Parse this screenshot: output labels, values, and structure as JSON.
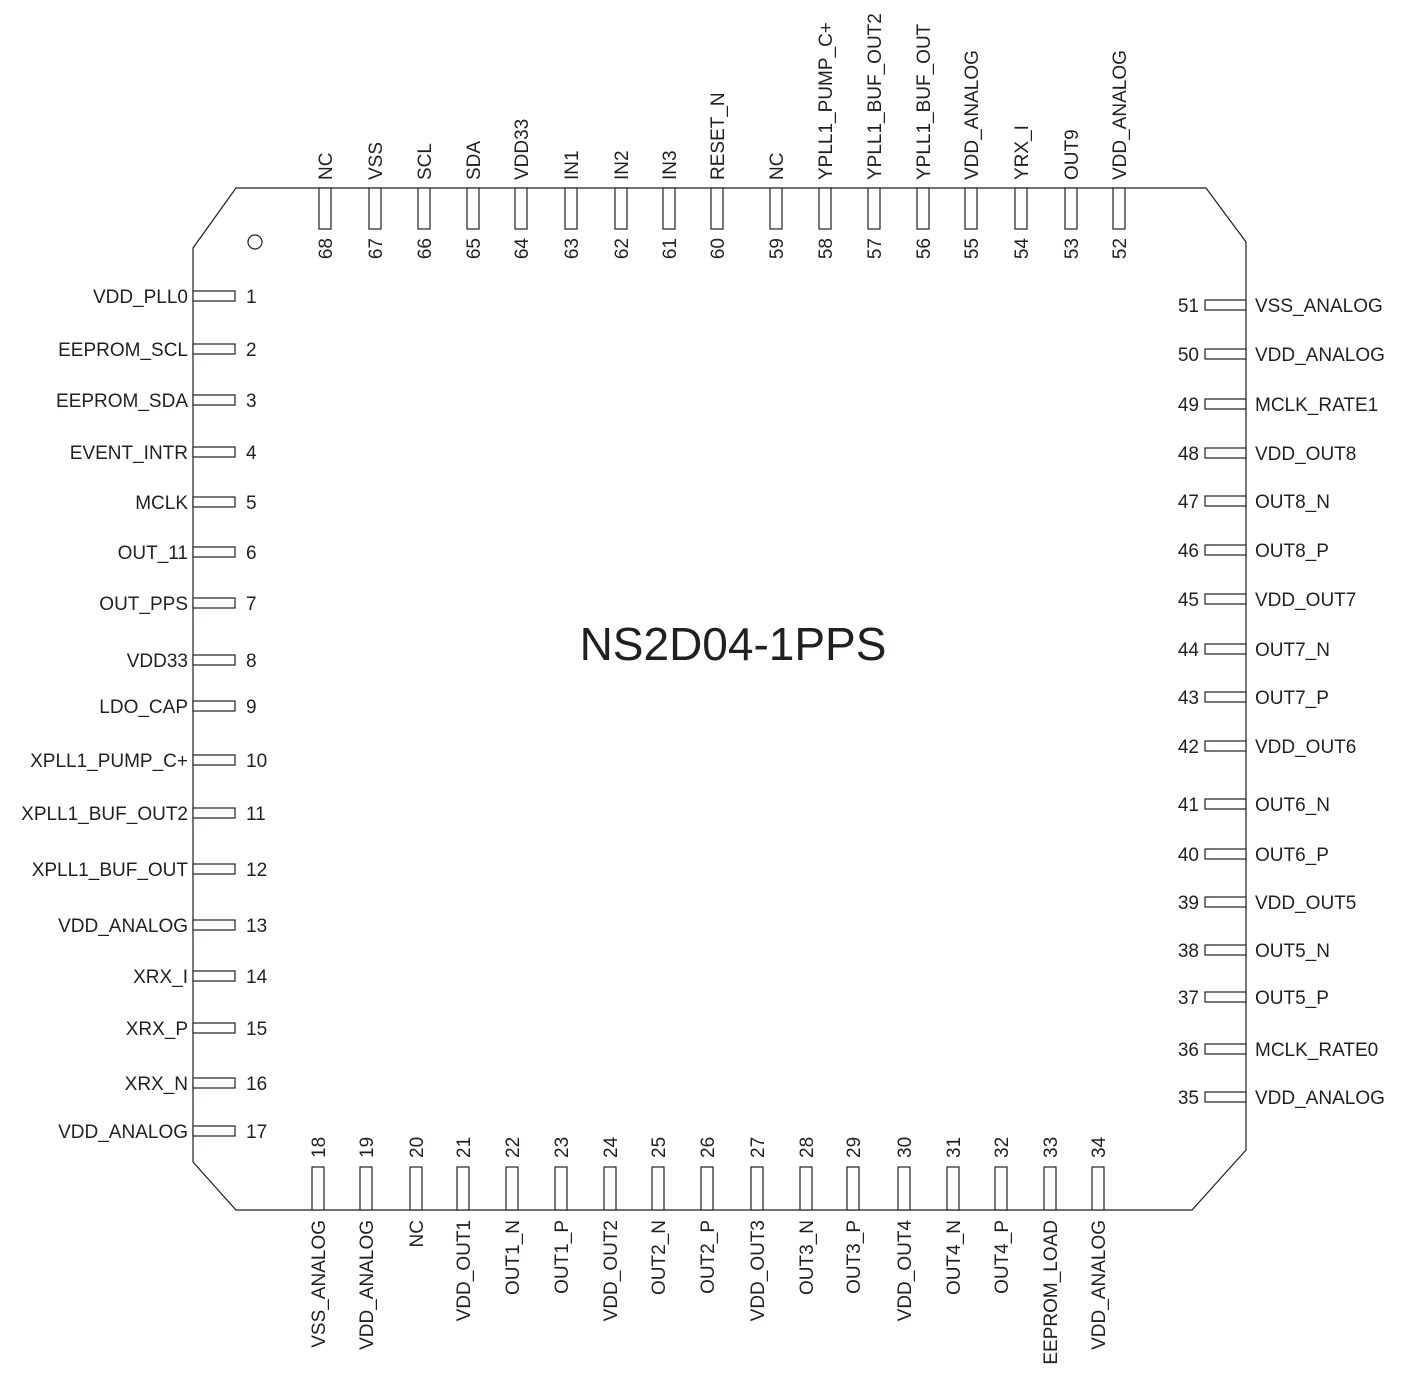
{
  "part_name": "NS2D04-1PPS",
  "pins": {
    "left": [
      {
        "num": "1",
        "name": "VDD_PLL0"
      },
      {
        "num": "2",
        "name": "EEPROM_SCL"
      },
      {
        "num": "3",
        "name": "EEPROM_SDA"
      },
      {
        "num": "4",
        "name": "EVENT_INTR"
      },
      {
        "num": "5",
        "name": "MCLK"
      },
      {
        "num": "6",
        "name": "OUT_11"
      },
      {
        "num": "7",
        "name": "OUT_PPS"
      },
      {
        "num": "8",
        "name": "VDD33"
      },
      {
        "num": "9",
        "name": "LDO_CAP"
      },
      {
        "num": "10",
        "name": "XPLL1_PUMP_C+"
      },
      {
        "num": "11",
        "name": "XPLL1_BUF_OUT2"
      },
      {
        "num": "12",
        "name": "XPLL1_BUF_OUT"
      },
      {
        "num": "13",
        "name": "VDD_ANALOG"
      },
      {
        "num": "14",
        "name": "XRX_I"
      },
      {
        "num": "15",
        "name": "XRX_P"
      },
      {
        "num": "16",
        "name": "XRX_N"
      },
      {
        "num": "17",
        "name": "VDD_ANALOG"
      }
    ],
    "bottom": [
      {
        "num": "18",
        "name": "VSS_ANALOG"
      },
      {
        "num": "19",
        "name": "VDD_ANALOG"
      },
      {
        "num": "20",
        "name": "NC"
      },
      {
        "num": "21",
        "name": "VDD_OUT1"
      },
      {
        "num": "22",
        "name": "OUT1_N"
      },
      {
        "num": "23",
        "name": "OUT1_P"
      },
      {
        "num": "24",
        "name": "VDD_OUT2"
      },
      {
        "num": "25",
        "name": "OUT2_N"
      },
      {
        "num": "26",
        "name": "OUT2_P"
      },
      {
        "num": "27",
        "name": "VDD_OUT3"
      },
      {
        "num": "28",
        "name": "OUT3_N"
      },
      {
        "num": "29",
        "name": "OUT3_P"
      },
      {
        "num": "30",
        "name": "VDD_OUT4"
      },
      {
        "num": "31",
        "name": "OUT4_N"
      },
      {
        "num": "32",
        "name": "OUT4_P"
      },
      {
        "num": "33",
        "name": "EEPROM_LOAD"
      },
      {
        "num": "34",
        "name": "VDD_ANALOG"
      }
    ],
    "right": [
      {
        "num": "35",
        "name": "VDD_ANALOG"
      },
      {
        "num": "36",
        "name": "MCLK_RATE0"
      },
      {
        "num": "37",
        "name": "OUT5_P"
      },
      {
        "num": "38",
        "name": "OUT5_N"
      },
      {
        "num": "39",
        "name": "VDD_OUT5"
      },
      {
        "num": "40",
        "name": "OUT6_P"
      },
      {
        "num": "41",
        "name": "OUT6_N"
      },
      {
        "num": "42",
        "name": "VDD_OUT6"
      },
      {
        "num": "43",
        "name": "OUT7_P"
      },
      {
        "num": "44",
        "name": "OUT7_N"
      },
      {
        "num": "45",
        "name": "VDD_OUT7"
      },
      {
        "num": "46",
        "name": "OUT8_P"
      },
      {
        "num": "47",
        "name": "OUT8_N"
      },
      {
        "num": "48",
        "name": "VDD_OUT8"
      },
      {
        "num": "49",
        "name": "MCLK_RATE1"
      },
      {
        "num": "50",
        "name": "VDD_ANALOG"
      },
      {
        "num": "51",
        "name": "VSS_ANALOG"
      }
    ],
    "top": [
      {
        "num": "52",
        "name": "VDD_ANALOG"
      },
      {
        "num": "53",
        "name": "OUT9"
      },
      {
        "num": "54",
        "name": "YRX_I"
      },
      {
        "num": "55",
        "name": "VDD_ANALOG"
      },
      {
        "num": "56",
        "name": "YPLL1_BUF_OUT"
      },
      {
        "num": "57",
        "name": "YPLL1_BUF_OUT2"
      },
      {
        "num": "58",
        "name": "YPLL1_PUMP_C+"
      },
      {
        "num": "59",
        "name": "NC"
      },
      {
        "num": "60",
        "name": "RESET_N"
      },
      {
        "num": "61",
        "name": "IN3"
      },
      {
        "num": "62",
        "name": "IN2"
      },
      {
        "num": "63",
        "name": "IN1"
      },
      {
        "num": "64",
        "name": "VDD33"
      },
      {
        "num": "65",
        "name": "SDA"
      },
      {
        "num": "66",
        "name": "SCL"
      },
      {
        "num": "67",
        "name": "VSS"
      },
      {
        "num": "68",
        "name": "NC"
      }
    ]
  }
}
